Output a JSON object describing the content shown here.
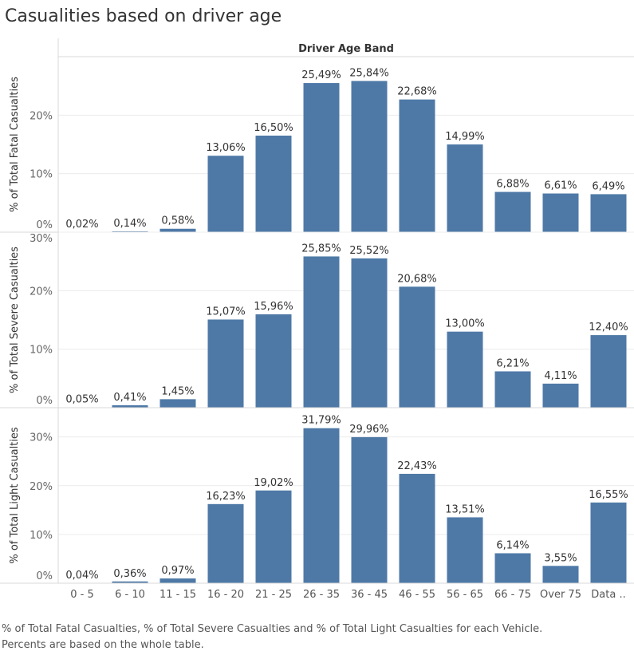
{
  "title": "Casualities based on driver age",
  "caption": {
    "line1": "% of Total Fatal Casualties, % of Total Severe Casualties and % of Total Light Casualties for each Vehicle.",
    "line2": "Percents are based on the whole table."
  },
  "chart_data": {
    "type": "bar",
    "xlabel": "Driver Age Band",
    "categories": [
      "0 - 5",
      "6 - 10",
      "11 - 15",
      "16 - 20",
      "21 - 25",
      "26 - 35",
      "36 - 45",
      "46 - 55",
      "56 - 65",
      "66 - 75",
      "Over 75",
      "Data .."
    ],
    "bar_color": "#4e79a7",
    "grid": true,
    "panels": [
      {
        "ylabel": "% of Total Fatal Casualties",
        "ylim": [
          0,
          30
        ],
        "ticks": [
          0,
          10,
          20
        ],
        "tick_labels": [
          "0%",
          "10%",
          "20%"
        ],
        "values": [
          0.02,
          0.14,
          0.58,
          13.06,
          16.5,
          25.49,
          25.84,
          22.68,
          14.99,
          6.88,
          6.61,
          6.49
        ],
        "labels": [
          "0,02%",
          "0,14%",
          "0,58%",
          "13,06%",
          "16,50%",
          "25,49%",
          "25,84%",
          "22,68%",
          "14,99%",
          "6,88%",
          "6,61%",
          "6,49%"
        ]
      },
      {
        "ylabel": "% of Total Severe Casualties",
        "ylim": [
          0,
          30
        ],
        "ticks": [
          0,
          10,
          20,
          30
        ],
        "tick_labels": [
          "0%",
          "10%",
          "20%",
          "30%"
        ],
        "values": [
          0.05,
          0.41,
          1.45,
          15.07,
          15.96,
          25.85,
          25.52,
          20.68,
          13.0,
          6.21,
          4.11,
          12.4
        ],
        "labels": [
          "0,05%",
          "0,41%",
          "1,45%",
          "15,07%",
          "15,96%",
          "25,85%",
          "25,52%",
          "20,68%",
          "13,00%",
          "6,21%",
          "4,11%",
          "12,40%"
        ]
      },
      {
        "ylabel": "% of Total Light Casualties",
        "ylim": [
          0,
          36
        ],
        "ticks": [
          0,
          10,
          20,
          30
        ],
        "tick_labels": [
          "0%",
          "10%",
          "20%",
          "30%"
        ],
        "values": [
          0.04,
          0.36,
          0.97,
          16.23,
          19.02,
          31.79,
          29.96,
          22.43,
          13.51,
          6.14,
          3.55,
          16.55
        ],
        "labels": [
          "0,04%",
          "0,36%",
          "0,97%",
          "16,23%",
          "19,02%",
          "31,79%",
          "29,96%",
          "22,43%",
          "13,51%",
          "6,14%",
          "3,55%",
          "16,55%"
        ]
      }
    ]
  }
}
